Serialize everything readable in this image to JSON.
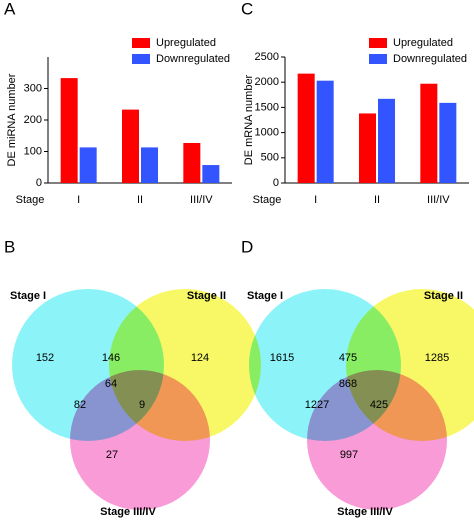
{
  "chart_data": [
    {
      "type": "bar",
      "panel": "A",
      "ylabel": "DE miRNA number",
      "xlabel": "Stage",
      "categories": [
        "I",
        "II",
        "III/IV"
      ],
      "series": [
        {
          "name": "Upregulated",
          "color": "#ff0000",
          "values": [
            333,
            233,
            127
          ]
        },
        {
          "name": "Downregulated",
          "color": "#3355ff",
          "values": [
            113,
            113,
            57
          ]
        }
      ],
      "ylim": [
        0,
        400
      ],
      "yticks": [
        0,
        100,
        200,
        300
      ],
      "legend": "upper right"
    },
    {
      "type": "bar",
      "panel": "C",
      "ylabel": "DE mRNA number",
      "xlabel": "Stage",
      "categories": [
        "I",
        "II",
        "III/IV"
      ],
      "series": [
        {
          "name": "Upregulated",
          "color": "#ff0000",
          "values": [
            2170,
            1380,
            1970
          ]
        },
        {
          "name": "Downregulated",
          "color": "#3355ff",
          "values": [
            2030,
            1670,
            1590
          ]
        }
      ],
      "ylim": [
        0,
        2500
      ],
      "yticks": [
        0,
        500,
        1000,
        1500,
        2000,
        2500
      ],
      "legend": "upper right"
    },
    {
      "type": "venn",
      "panel": "B",
      "sets": [
        "Stage I",
        "Stage II",
        "Stage III/IV"
      ],
      "colors": [
        "#66f0f5",
        "#f5f533",
        "#f57ac8"
      ],
      "values": [
        152,
        124,
        27,
        146,
        82,
        9,
        64
      ]
    },
    {
      "type": "venn",
      "panel": "D",
      "sets": [
        "Stage I",
        "Stage II",
        "Stage III/IV"
      ],
      "colors": [
        "#66f0f5",
        "#f5f533",
        "#f57ac8"
      ],
      "values": [
        1615,
        1285,
        997,
        475,
        1227,
        425,
        868
      ]
    }
  ]
}
